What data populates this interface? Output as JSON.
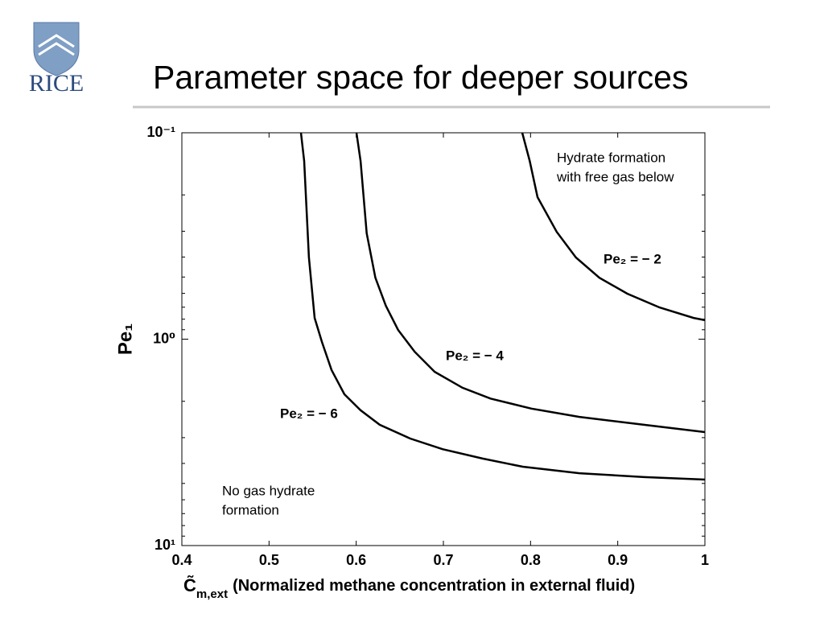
{
  "header": {
    "title": "Parameter space for deeper sources",
    "logo_text": "RICE"
  },
  "chart_data": {
    "type": "line",
    "ylabel": "Pe₁",
    "xlabel_symbol": "C̃",
    "xlabel_subscript": "m,ext",
    "xlabel_text": "(Normalized methane concentration in external fluid)",
    "xlim": [
      0.4,
      1
    ],
    "xticks": [
      0.4,
      0.5,
      0.6,
      0.7,
      0.8,
      0.9,
      1
    ],
    "ylim": [
      0.1,
      10
    ],
    "ylog": true,
    "y_inverted": true,
    "yticks": [
      {
        "value": 0.1,
        "label": "10⁻¹"
      },
      {
        "value": 1,
        "label": "10⁰"
      },
      {
        "value": 10,
        "label": "10¹"
      }
    ],
    "minor_yticks": [
      0.2,
      0.3,
      0.4,
      0.5,
      0.6,
      0.7,
      0.8,
      0.9,
      2,
      3,
      4,
      5,
      6,
      7,
      8,
      9
    ],
    "annotations": [
      {
        "lines": [
          "Hydrate formation",
          "with free gas below"
        ]
      },
      {
        "lines": [
          "No gas hydrate",
          "formation"
        ]
      }
    ],
    "series": [
      {
        "name": "Pe₂ = − 6",
        "color": "#000000",
        "x": [
          0.5366,
          0.5403,
          0.5458,
          0.5523,
          0.5606,
          0.5717,
          0.5865,
          0.6049,
          0.627,
          0.662,
          0.699,
          0.745,
          0.791,
          0.856,
          0.93,
          1.0
        ],
        "values": [
          0.1,
          0.137,
          0.402,
          0.789,
          1.03,
          1.41,
          1.85,
          2.21,
          2.6,
          3.03,
          3.41,
          3.79,
          4.15,
          4.46,
          4.66,
          4.79
        ]
      },
      {
        "name": "Pe₂ = − 4",
        "color": "#000000",
        "x": [
          0.6003,
          0.605,
          0.612,
          0.622,
          0.634,
          0.648,
          0.667,
          0.69,
          0.722,
          0.754,
          0.801,
          0.856,
          0.93,
          1.0
        ],
        "values": [
          0.1,
          0.137,
          0.307,
          0.504,
          0.689,
          0.902,
          1.15,
          1.44,
          1.72,
          1.94,
          2.17,
          2.38,
          2.6,
          2.82
        ]
      },
      {
        "name": "Pe₂ = − 2",
        "color": "#000000",
        "x": [
          0.7905,
          0.799,
          0.808,
          0.83,
          0.852,
          0.879,
          0.911,
          0.948,
          0.987,
          1.0
        ],
        "values": [
          0.1,
          0.137,
          0.205,
          0.302,
          0.402,
          0.504,
          0.602,
          0.702,
          0.789,
          0.809
        ]
      }
    ]
  }
}
